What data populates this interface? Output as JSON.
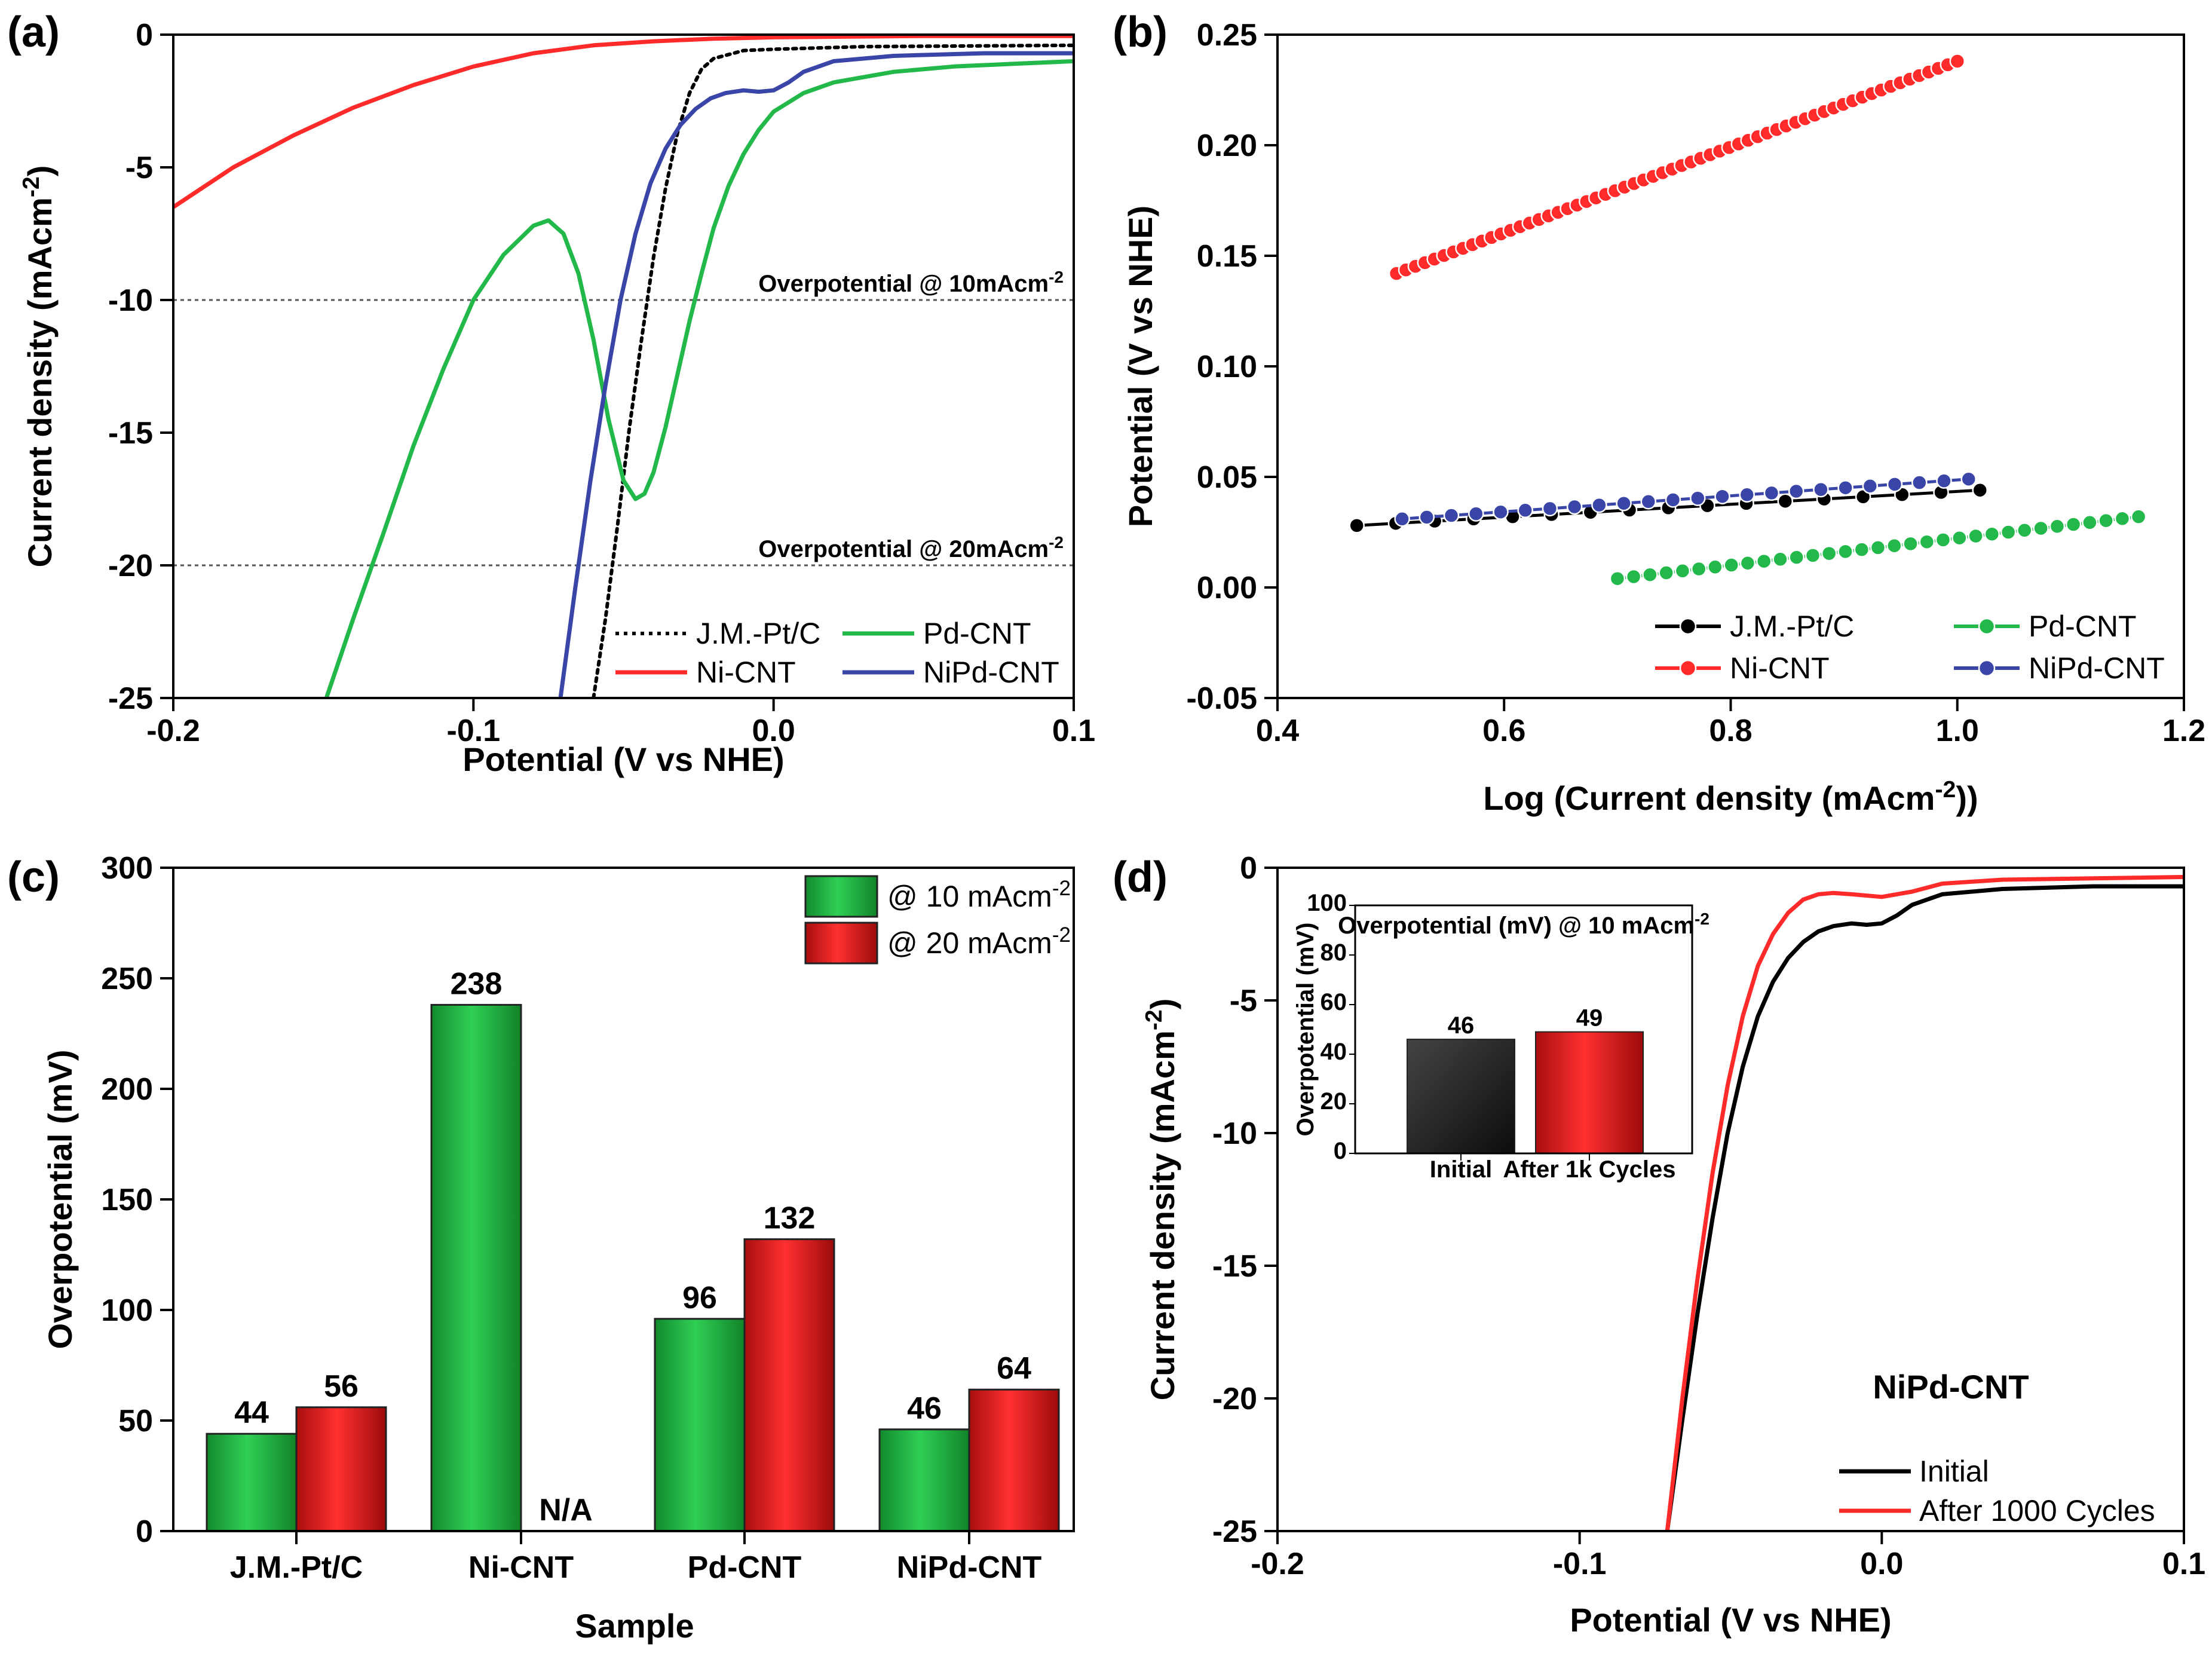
{
  "colors": {
    "pt": "#000000",
    "ni": "#ff2b2b",
    "pd": "#22b84a",
    "nipd": "#3a45a8",
    "bar_green": "#1f9a3c",
    "bar_red": "#d81c1c",
    "bar_dark": "#2a2a2a"
  },
  "chart_data": [
    {
      "id": "a",
      "panel_label": "(a)",
      "type": "line",
      "xlabel": "Potential (V vs NHE)",
      "ylabel": "Current density (mAcm",
      "ylabel_sup": "-2",
      "ylabel_close": ")",
      "xlim": [
        -0.2,
        0.1
      ],
      "ylim": [
        -25,
        0
      ],
      "xticks": [
        -0.2,
        -0.1,
        0.0,
        0.1
      ],
      "xtick_labels": [
        "-0.2",
        "-0.1",
        "0.0",
        "0.1"
      ],
      "yticks": [
        0,
        -5,
        -10,
        -15,
        -20,
        -25
      ],
      "ytick_labels": [
        "0",
        "-5",
        "-10",
        "-15",
        "-20",
        "-25"
      ],
      "reference_lines": [
        {
          "y": -10,
          "label": "Overpotential @ 10mAcm",
          "sup": "-2"
        },
        {
          "y": -20,
          "label": "Overpotential @ 20mAcm",
          "sup": "-2"
        }
      ],
      "legend_position": "bottom-right",
      "legend": [
        {
          "label": "J.M.-Pt/C",
          "color_key": "pt",
          "style": "dotted"
        },
        {
          "label": "Pd-CNT",
          "color_key": "pd",
          "style": "solid"
        },
        {
          "label": "Ni-CNT",
          "color_key": "ni",
          "style": "solid"
        },
        {
          "label": "NiPd-CNT",
          "color_key": "nipd",
          "style": "solid"
        }
      ],
      "series": [
        {
          "name": "J.M.-Pt/C",
          "color_key": "pt",
          "style": "dotted",
          "x": [
            -0.06,
            -0.056,
            -0.052,
            -0.048,
            -0.044,
            -0.04,
            -0.036,
            -0.032,
            -0.028,
            -0.024,
            -0.02,
            -0.01,
            0.0,
            0.03,
            0.1
          ],
          "y": [
            -25,
            -22,
            -18.5,
            -14.8,
            -11.5,
            -8.4,
            -5.8,
            -3.7,
            -2.2,
            -1.3,
            -0.9,
            -0.6,
            -0.55,
            -0.45,
            -0.4
          ]
        },
        {
          "name": "Pd-CNT",
          "color_key": "pd",
          "style": "solid",
          "x": [
            -0.149,
            -0.14,
            -0.13,
            -0.12,
            -0.11,
            -0.1,
            -0.09,
            -0.08,
            -0.075,
            -0.07,
            -0.065,
            -0.06,
            -0.055,
            -0.05,
            -0.046,
            -0.043,
            -0.04,
            -0.036,
            -0.032,
            -0.028,
            -0.024,
            -0.02,
            -0.015,
            -0.01,
            -0.005,
            0.0,
            0.01,
            0.02,
            0.04,
            0.06,
            0.08,
            0.1
          ],
          "y": [
            -25,
            -22,
            -18.8,
            -15.5,
            -12.6,
            -10.0,
            -8.3,
            -7.2,
            -7.0,
            -7.5,
            -9.0,
            -11.5,
            -14.5,
            -16.8,
            -17.5,
            -17.3,
            -16.5,
            -14.8,
            -12.8,
            -10.8,
            -9.0,
            -7.3,
            -5.7,
            -4.5,
            -3.6,
            -2.9,
            -2.2,
            -1.8,
            -1.4,
            -1.2,
            -1.1,
            -1.0
          ]
        },
        {
          "name": "Ni-CNT",
          "color_key": "ni",
          "style": "solid",
          "x": [
            -0.2,
            -0.18,
            -0.16,
            -0.14,
            -0.12,
            -0.1,
            -0.08,
            -0.06,
            -0.04,
            -0.02,
            0.0,
            0.05,
            0.1
          ],
          "y": [
            -6.5,
            -5.0,
            -3.8,
            -2.75,
            -1.9,
            -1.2,
            -0.7,
            -0.4,
            -0.25,
            -0.15,
            -0.1,
            -0.05,
            -0.05
          ]
        },
        {
          "name": "NiPd-CNT",
          "color_key": "nipd",
          "style": "solid",
          "x": [
            -0.071,
            -0.066,
            -0.061,
            -0.056,
            -0.051,
            -0.046,
            -0.041,
            -0.036,
            -0.031,
            -0.026,
            -0.021,
            -0.016,
            -0.01,
            -0.005,
            0.0,
            0.005,
            0.01,
            0.02,
            0.04,
            0.07,
            0.1
          ],
          "y": [
            -25,
            -20.8,
            -16.8,
            -13.2,
            -10.0,
            -7.5,
            -5.6,
            -4.3,
            -3.4,
            -2.8,
            -2.4,
            -2.2,
            -2.1,
            -2.15,
            -2.1,
            -1.8,
            -1.4,
            -1.0,
            -0.8,
            -0.7,
            -0.7
          ]
        }
      ]
    },
    {
      "id": "b",
      "panel_label": "(b)",
      "type": "scatter",
      "xlabel": "Log (Current density (mAcm",
      "xlabel_sup": "-2",
      "xlabel_close": "))",
      "ylabel": "Potential (V vs NHE)",
      "xlim": [
        0.4,
        1.2
      ],
      "ylim": [
        -0.05,
        0.25
      ],
      "xticks": [
        0.4,
        0.6,
        0.8,
        1.0,
        1.2
      ],
      "xtick_labels": [
        "0.4",
        "0.6",
        "0.8",
        "1.0",
        "1.2"
      ],
      "yticks": [
        -0.05,
        0.0,
        0.05,
        0.1,
        0.15,
        0.2,
        0.25
      ],
      "ytick_labels": [
        "-0.05",
        "0.00",
        "0.05",
        "0.10",
        "0.15",
        "0.20",
        "0.25"
      ],
      "legend_position": "bottom-right",
      "legend": [
        {
          "label": "J.M.-Pt/C",
          "color_key": "pt"
        },
        {
          "label": "Pd-CNT",
          "color_key": "pd"
        },
        {
          "label": "Ni-CNT",
          "color_key": "ni"
        },
        {
          "label": "NiPd-CNT",
          "color_key": "nipd"
        }
      ],
      "series": [
        {
          "name": "J.M.-Pt/C",
          "color_key": "pt",
          "x_start": 0.47,
          "x_end": 1.02,
          "y_start": 0.028,
          "y_end": 0.044,
          "n_points": 17
        },
        {
          "name": "Pd-CNT",
          "color_key": "pd",
          "x_start": 0.7,
          "x_end": 1.16,
          "y_start": 0.004,
          "y_end": 0.032,
          "n_points": 33
        },
        {
          "name": "Ni-CNT",
          "color_key": "ni",
          "x_start": 0.505,
          "x_end": 1.0,
          "y_start": 0.142,
          "y_end": 0.238,
          "n_points": 60
        },
        {
          "name": "NiPd-CNT",
          "color_key": "nipd",
          "x_start": 0.51,
          "x_end": 1.01,
          "y_start": 0.031,
          "y_end": 0.049,
          "n_points": 24
        }
      ]
    },
    {
      "id": "c",
      "panel_label": "(c)",
      "type": "bar",
      "xlabel": "Sample",
      "ylabel": "Overpotential (mV)",
      "ylim": [
        0,
        300
      ],
      "yticks": [
        0,
        50,
        100,
        150,
        200,
        250,
        300
      ],
      "ytick_labels": [
        "0",
        "50",
        "100",
        "150",
        "200",
        "250",
        "300"
      ],
      "categories": [
        "J.M.-Pt/C",
        "Ni-CNT",
        "Pd-CNT",
        "NiPd-CNT"
      ],
      "legend_position": "top-right",
      "series": [
        {
          "name": "@ 10 mAcm",
          "sup": "-2",
          "color_key": "bar_green",
          "values": [
            44,
            238,
            96,
            46
          ],
          "value_labels": [
            "44",
            "238",
            "96",
            "46"
          ]
        },
        {
          "name": "@ 20 mAcm",
          "sup": "-2",
          "color_key": "bar_red",
          "values": [
            56,
            null,
            132,
            64
          ],
          "value_labels": [
            "56",
            "N/A",
            "132",
            "64"
          ]
        }
      ]
    },
    {
      "id": "d",
      "panel_label": "(d)",
      "type": "line",
      "xlabel": "Potential (V vs NHE)",
      "ylabel": "Current density (mAcm",
      "ylabel_sup": "-2",
      "ylabel_close": ")",
      "xlim": [
        -0.2,
        0.1
      ],
      "ylim": [
        -25,
        0
      ],
      "xticks": [
        -0.2,
        -0.1,
        0.0,
        0.1
      ],
      "xtick_labels": [
        "-0.2",
        "-0.1",
        "0.0",
        "0.1"
      ],
      "yticks": [
        0,
        -5,
        -10,
        -15,
        -20,
        -25
      ],
      "ytick_labels": [
        "0",
        "-5",
        "-10",
        "-15",
        "-20",
        "-25"
      ],
      "annotation": "NiPd-CNT",
      "legend_position": "bottom-right",
      "legend": [
        {
          "label": "Initial",
          "color_key": "pt"
        },
        {
          "label": "After 1000 Cycles",
          "color_key": "ni"
        }
      ],
      "series": [
        {
          "name": "Initial",
          "color_key": "pt",
          "x": [
            -0.071,
            -0.066,
            -0.061,
            -0.056,
            -0.051,
            -0.046,
            -0.041,
            -0.036,
            -0.031,
            -0.026,
            -0.021,
            -0.016,
            -0.01,
            -0.005,
            0.0,
            0.005,
            0.01,
            0.02,
            0.04,
            0.07,
            0.1
          ],
          "y": [
            -25,
            -20.8,
            -16.8,
            -13.2,
            -10.0,
            -7.5,
            -5.6,
            -4.3,
            -3.4,
            -2.8,
            -2.4,
            -2.2,
            -2.1,
            -2.15,
            -2.1,
            -1.8,
            -1.4,
            -1.0,
            -0.8,
            -0.7,
            -0.7
          ]
        },
        {
          "name": "After 1000 Cycles",
          "color_key": "ni",
          "x": [
            -0.071,
            -0.066,
            -0.061,
            -0.056,
            -0.051,
            -0.046,
            -0.041,
            -0.036,
            -0.031,
            -0.026,
            -0.021,
            -0.016,
            -0.01,
            0.0,
            0.01,
            0.02,
            0.04,
            0.07,
            0.1
          ],
          "y": [
            -25,
            -20.0,
            -15.5,
            -11.5,
            -8.2,
            -5.6,
            -3.7,
            -2.5,
            -1.7,
            -1.2,
            -1.0,
            -0.95,
            -1.0,
            -1.1,
            -0.9,
            -0.6,
            -0.45,
            -0.4,
            -0.35
          ]
        }
      ],
      "inset": {
        "type": "bar",
        "title": "Overpotential (mV) @ 10 mAcm",
        "title_sup": "-2",
        "ylabel": "Overpotential (mV)",
        "ylim": [
          0,
          100
        ],
        "yticks": [
          0,
          20,
          40,
          60,
          80,
          100
        ],
        "ytick_labels": [
          "0",
          "20",
          "40",
          "60",
          "80",
          "100"
        ],
        "categories": [
          "Initial",
          "After 1k Cycles"
        ],
        "values": [
          46,
          49
        ],
        "value_labels": [
          "46",
          "49"
        ],
        "color_keys": [
          "bar_dark",
          "bar_red"
        ]
      }
    }
  ]
}
